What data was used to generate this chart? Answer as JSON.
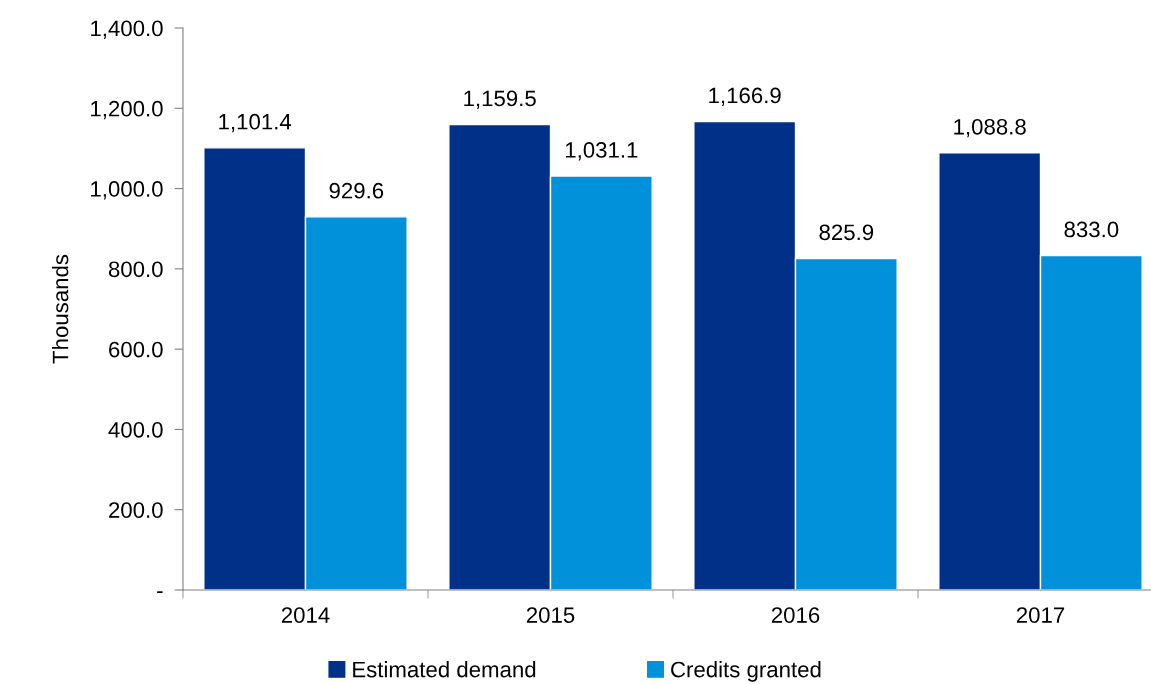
{
  "chart_data": {
    "type": "bar",
    "ylabel": "Thousands",
    "categories": [
      "2014",
      "2015",
      "2016",
      "2017"
    ],
    "series": [
      {
        "name": "Estimated demand",
        "color": "#003087",
        "values": [
          1101.4,
          1159.5,
          1166.9,
          1088.8
        ],
        "value_labels": [
          "1,101.4",
          "1,159.5",
          "1,166.9",
          "1,088.8"
        ]
      },
      {
        "name": "Credits granted",
        "color": "#0091da",
        "values": [
          929.6,
          1031.1,
          825.9,
          833.0
        ],
        "value_labels": [
          "929.6",
          "1,031.1",
          "825.9",
          "833.0"
        ]
      }
    ],
    "ylim": [
      0,
      1400
    ],
    "yticks": [
      {
        "value": 0,
        "label": "-"
      },
      {
        "value": 200,
        "label": "200.0"
      },
      {
        "value": 400,
        "label": "400.0"
      },
      {
        "value": 600,
        "label": "600.0"
      },
      {
        "value": 800,
        "label": "800.0"
      },
      {
        "value": 1000,
        "label": "1,000.0"
      },
      {
        "value": 1200,
        "label": "1,200.0"
      },
      {
        "value": 1400,
        "label": "1,400.0"
      }
    ],
    "grid": false,
    "legend": "bottom"
  }
}
